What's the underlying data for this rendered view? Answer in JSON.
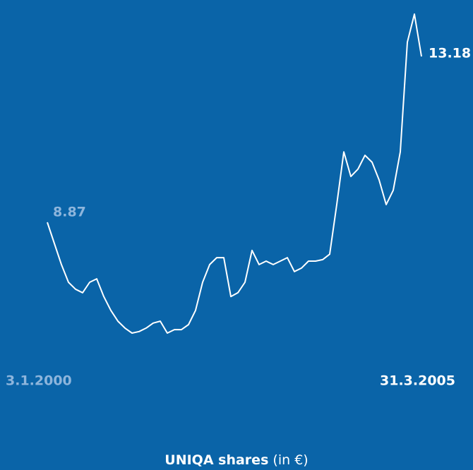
{
  "chart_data": {
    "type": "line",
    "title": {
      "main": "UNIQA shares",
      "unit": "(in €)"
    },
    "x_labels": [
      "3.1.2000",
      "31.3.2005"
    ],
    "color": "#ffffff",
    "values": [
      8.87,
      8.32,
      7.77,
      7.31,
      7.13,
      7.04,
      7.31,
      7.4,
      6.94,
      6.58,
      6.3,
      6.12,
      5.99,
      6.03,
      6.12,
      6.25,
      6.3,
      5.99,
      6.08,
      6.08,
      6.21,
      6.58,
      7.31,
      7.77,
      7.95,
      7.95,
      6.94,
      7.04,
      7.31,
      8.14,
      7.77,
      7.86,
      7.77,
      7.86,
      7.95,
      7.59,
      7.68,
      7.86,
      7.86,
      7.9,
      8.04,
      9.33,
      10.7,
      10.06,
      10.25,
      10.61,
      10.43,
      9.97,
      9.33,
      9.7,
      10.7,
      13.55,
      14.28,
      13.18
    ]
  }
}
